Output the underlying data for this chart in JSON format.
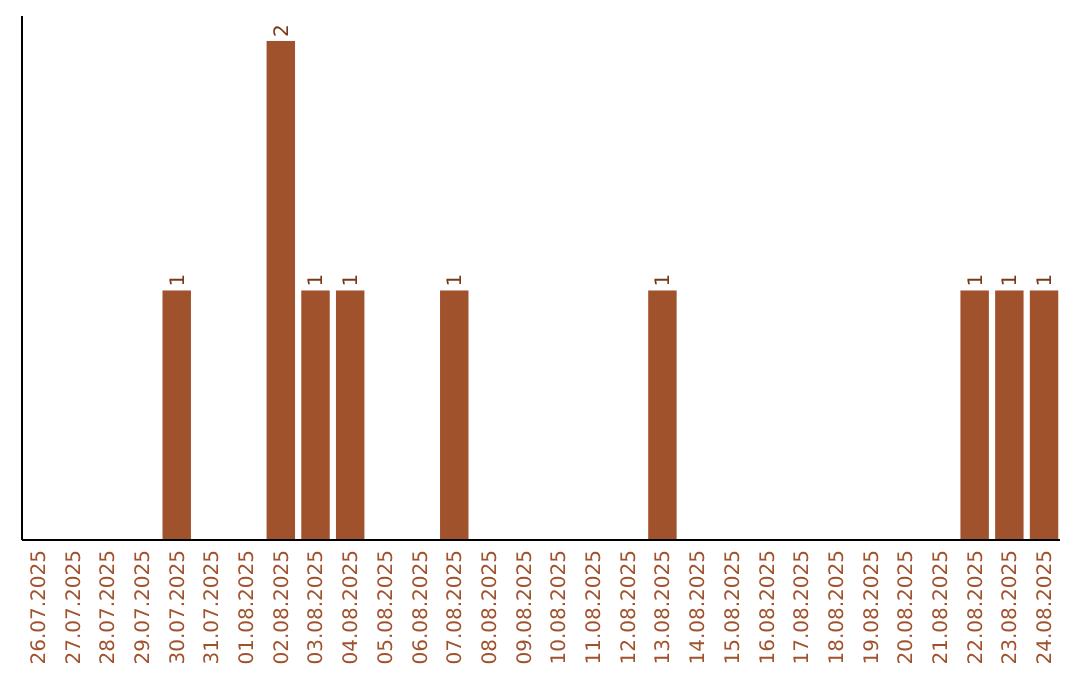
{
  "chart_data": {
    "type": "bar",
    "categories": [
      "26.07.2025",
      "27.07.2025",
      "28.07.2025",
      "29.07.2025",
      "30.07.2025",
      "31.07.2025",
      "01.08.2025",
      "02.08.2025",
      "03.08.2025",
      "04.08.2025",
      "05.08.2025",
      "06.08.2025",
      "07.08.2025",
      "08.08.2025",
      "09.08.2025",
      "10.08.2025",
      "11.08.2025",
      "12.08.2025",
      "13.08.2025",
      "14.08.2025",
      "15.08.2025",
      "16.08.2025",
      "17.08.2025",
      "18.08.2025",
      "19.08.2025",
      "20.08.2025",
      "21.08.2025",
      "22.08.2025",
      "23.08.2025",
      "24.08.2025"
    ],
    "values": [
      0,
      0,
      0,
      0,
      1,
      0,
      0,
      2,
      1,
      1,
      0,
      0,
      1,
      0,
      0,
      0,
      0,
      0,
      1,
      0,
      0,
      0,
      0,
      0,
      0,
      0,
      0,
      1,
      1,
      1
    ],
    "value_labels": [
      null,
      null,
      null,
      null,
      "1",
      null,
      null,
      "2",
      "1",
      "1",
      null,
      null,
      "1",
      null,
      null,
      null,
      null,
      null,
      "1",
      null,
      null,
      null,
      null,
      null,
      null,
      null,
      null,
      "1",
      "1",
      "1"
    ],
    "color": "#a0522d",
    "tick_labels": "x"
  }
}
